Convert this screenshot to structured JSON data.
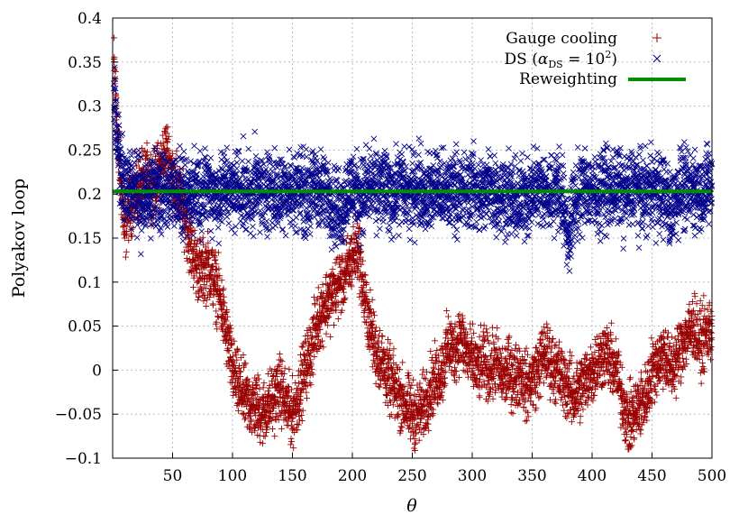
{
  "chart_data": {
    "type": "scatter",
    "title": "",
    "xlabel": "θ",
    "ylabel": "Polyakov loop",
    "xlim": [
      0,
      500
    ],
    "ylim": [
      -0.1,
      0.4
    ],
    "x_ticks": [
      50,
      100,
      150,
      200,
      250,
      300,
      350,
      400,
      450,
      500
    ],
    "x_tick_labels": [
      "50",
      "100",
      "150",
      "200",
      "250",
      "300",
      "350",
      "400",
      "450",
      "500"
    ],
    "y_ticks": [
      -0.1,
      -0.05,
      0,
      0.05,
      0.1,
      0.15,
      0.2,
      0.25,
      0.3,
      0.35,
      0.4
    ],
    "y_tick_labels": [
      "−0.1",
      "−0.05",
      "0",
      "0.05",
      "0.1",
      "0.15",
      "0.2",
      "0.25",
      "0.3",
      "0.35",
      "0.4"
    ],
    "grid": true,
    "legend_position": "top-right",
    "series": [
      {
        "name": "Gauge cooling",
        "marker": "plus",
        "color": "#9b0000",
        "x": [
          1,
          3,
          5,
          8,
          10,
          12,
          15,
          18,
          20,
          25,
          30,
          35,
          40,
          45,
          50,
          55,
          60,
          65,
          70,
          75,
          80,
          85,
          90,
          95,
          100,
          105,
          110,
          115,
          120,
          125,
          130,
          135,
          140,
          145,
          150,
          155,
          160,
          165,
          170,
          175,
          180,
          185,
          190,
          195,
          200,
          205,
          210,
          215,
          220,
          225,
          230,
          235,
          240,
          245,
          250,
          255,
          260,
          265,
          270,
          275,
          280,
          285,
          290,
          295,
          300,
          305,
          310,
          315,
          320,
          325,
          330,
          335,
          340,
          345,
          350,
          355,
          360,
          365,
          370,
          375,
          380,
          385,
          390,
          395,
          400,
          405,
          410,
          415,
          420,
          425,
          430,
          435,
          440,
          445,
          450,
          455,
          460,
          465,
          470,
          475,
          480,
          485,
          490,
          495,
          500
        ],
        "y": [
          0.35,
          0.3,
          0.24,
          0.2,
          0.15,
          0.18,
          0.19,
          0.2,
          0.2,
          0.21,
          0.22,
          0.21,
          0.23,
          0.25,
          0.22,
          0.2,
          0.18,
          0.14,
          0.12,
          0.11,
          0.12,
          0.1,
          0.08,
          0.04,
          0.0,
          -0.02,
          -0.03,
          -0.04,
          -0.04,
          -0.05,
          -0.04,
          -0.03,
          -0.02,
          -0.04,
          -0.05,
          -0.03,
          0.0,
          0.02,
          0.05,
          0.07,
          0.08,
          0.09,
          0.1,
          0.11,
          0.13,
          0.14,
          0.08,
          0.05,
          0.02,
          0.01,
          -0.01,
          -0.02,
          -0.03,
          -0.04,
          -0.05,
          -0.05,
          -0.04,
          -0.02,
          -0.01,
          0.0,
          0.03,
          0.02,
          0.04,
          0.02,
          0.01,
          0.0,
          0.01,
          0.0,
          0.01,
          -0.01,
          0.0,
          -0.01,
          0.0,
          -0.02,
          -0.01,
          0.0,
          0.02,
          0.01,
          0.0,
          -0.01,
          -0.02,
          -0.03,
          -0.02,
          -0.01,
          0.0,
          0.01,
          0.02,
          0.01,
          0.0,
          -0.03,
          -0.06,
          -0.05,
          -0.04,
          -0.03,
          0.0,
          0.01,
          0.02,
          0.0,
          0.01,
          0.03,
          0.04,
          0.05,
          0.03,
          0.04,
          0.05
        ],
        "spread": 0.018
      },
      {
        "name": "DS (α_DS = 10^2)",
        "marker": "cross",
        "color": "#00008b",
        "x": [
          1,
          3,
          5,
          8,
          10,
          15,
          20,
          25,
          30,
          35,
          40,
          45,
          50,
          55,
          60,
          65,
          70,
          75,
          80,
          85,
          90,
          95,
          100,
          105,
          110,
          115,
          120,
          125,
          130,
          135,
          140,
          145,
          150,
          155,
          160,
          165,
          170,
          175,
          180,
          185,
          190,
          195,
          200,
          205,
          210,
          215,
          220,
          225,
          230,
          235,
          240,
          245,
          250,
          255,
          260,
          265,
          270,
          275,
          280,
          285,
          290,
          295,
          300,
          305,
          310,
          315,
          320,
          325,
          330,
          335,
          340,
          345,
          350,
          355,
          360,
          365,
          370,
          375,
          380,
          385,
          390,
          395,
          400,
          405,
          410,
          415,
          420,
          425,
          430,
          435,
          440,
          445,
          450,
          455,
          460,
          465,
          470,
          475,
          480,
          485,
          490,
          495,
          500
        ],
        "y": [
          0.32,
          0.27,
          0.24,
          0.22,
          0.2,
          0.21,
          0.2,
          0.19,
          0.2,
          0.21,
          0.2,
          0.2,
          0.21,
          0.2,
          0.19,
          0.2,
          0.21,
          0.2,
          0.21,
          0.2,
          0.2,
          0.21,
          0.2,
          0.21,
          0.2,
          0.2,
          0.21,
          0.2,
          0.21,
          0.2,
          0.2,
          0.21,
          0.2,
          0.21,
          0.2,
          0.2,
          0.21,
          0.2,
          0.2,
          0.19,
          0.18,
          0.2,
          0.21,
          0.2,
          0.2,
          0.21,
          0.2,
          0.21,
          0.2,
          0.2,
          0.21,
          0.2,
          0.2,
          0.21,
          0.2,
          0.2,
          0.21,
          0.2,
          0.2,
          0.21,
          0.2,
          0.2,
          0.21,
          0.2,
          0.2,
          0.21,
          0.2,
          0.2,
          0.2,
          0.19,
          0.19,
          0.2,
          0.2,
          0.21,
          0.2,
          0.2,
          0.21,
          0.2,
          0.15,
          0.19,
          0.2,
          0.21,
          0.2,
          0.2,
          0.21,
          0.2,
          0.21,
          0.2,
          0.2,
          0.21,
          0.2,
          0.2,
          0.21,
          0.2,
          0.2,
          0.18,
          0.2,
          0.21,
          0.2,
          0.21,
          0.2,
          0.21,
          0.21
        ],
        "spread": 0.022
      },
      {
        "name": "Reweighting",
        "marker": "line",
        "color": "#008f00",
        "x": [
          0,
          500
        ],
        "y": [
          0.203,
          0.203
        ]
      }
    ]
  }
}
